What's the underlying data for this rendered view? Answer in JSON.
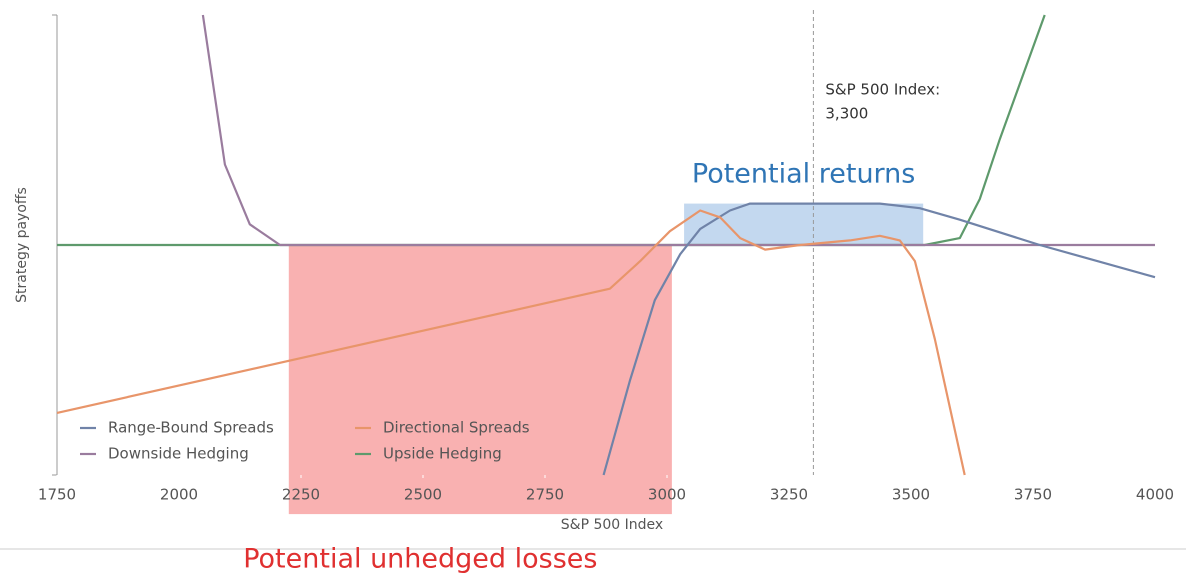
{
  "chart_data": {
    "type": "line",
    "x_label": "S&P 500 Index",
    "y_label": "Strategy payoffs",
    "xlim": [
      1750,
      4000
    ],
    "xticks": [
      1750,
      2000,
      2250,
      2500,
      2750,
      3000,
      3250,
      3500,
      3750,
      4000
    ],
    "ylim": [
      -100,
      100
    ],
    "series": [
      {
        "name": "Range-Bound Spreads",
        "color": "#7083a8",
        "x": [
          2870,
          2924,
          2975,
          3027,
          3068,
          3129,
          3170,
          3436,
          3518,
          3600,
          3764,
          4000
        ],
        "values": [
          -100,
          -59,
          -24,
          -4,
          7,
          15,
          18,
          18,
          16,
          11,
          0,
          -14
        ]
      },
      {
        "name": "Directional Spreads",
        "color": "#e8956a",
        "x": [
          1750,
          2883,
          2945,
          3006,
          3068,
          3109,
          3150,
          3201,
          3273,
          3375,
          3436,
          3477,
          3508,
          3549,
          3610
        ],
        "values": [
          -73,
          -19,
          -7,
          6,
          15,
          12,
          3,
          -2,
          0,
          2,
          4,
          2,
          -7,
          -41,
          -100
        ]
      },
      {
        "name": "Downside Hedging",
        "color": "#9a7c9e",
        "x": [
          2049,
          2094,
          2145,
          2207,
          4000
        ],
        "values": [
          100,
          35,
          9,
          0,
          0
        ]
      },
      {
        "name": "Upside Hedging",
        "color": "#5e9a6c",
        "x": [
          1750,
          3528,
          3600,
          3641,
          3682,
          3774
        ],
        "values": [
          0,
          0,
          3,
          20,
          46,
          100
        ]
      }
    ],
    "vline": {
      "x": 3300,
      "label_lines": [
        "S&P 500 Index:",
        "3,300"
      ]
    },
    "regions": [
      {
        "label": "Potential returns",
        "xlim": [
          3035,
          3525
        ],
        "ylim": [
          0,
          18
        ],
        "color": "#c3d8ef",
        "label_color": "#2f75b5"
      },
      {
        "label": "Potential unhedged losses",
        "xlim": [
          2225,
          3010
        ],
        "ylim": [
          -117,
          0
        ],
        "color": "#f8a3a3",
        "label_color": "#e03030"
      }
    ]
  }
}
